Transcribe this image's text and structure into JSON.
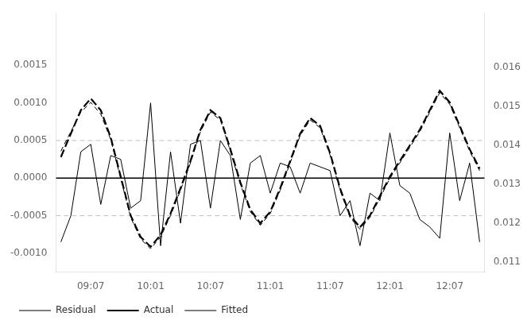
{
  "chart_data": {
    "type": "line",
    "categories": [
      null,
      null,
      null,
      "09:07",
      null,
      null,
      null,
      null,
      null,
      "10:01",
      null,
      null,
      null,
      null,
      null,
      "10:07",
      null,
      null,
      null,
      null,
      null,
      "11:01",
      null,
      null,
      null,
      null,
      null,
      "11:07",
      null,
      null,
      null,
      null,
      null,
      "12:01",
      null,
      null,
      null,
      null,
      null,
      "12:07",
      null,
      null,
      null
    ],
    "series": [
      {
        "name": "Residual",
        "color": "#000000",
        "line_style": "solid",
        "values": [
          -0.00085,
          -0.0005,
          0.00035,
          0.00045,
          -0.00035,
          0.0003,
          0.00025,
          -0.0004,
          -0.0003,
          0.001,
          -0.0009,
          0.00035,
          -0.0006,
          0.00045,
          0.0005,
          -0.0004,
          0.0005,
          0.0003,
          -0.00055,
          0.0002,
          0.0003,
          -0.0002,
          0.0002,
          0.00015,
          -0.0002,
          0.0002,
          0.00015,
          0.0001,
          -0.0005,
          -0.0003,
          -0.0009,
          -0.0002,
          -0.0003,
          0.0006,
          -0.0001,
          -0.0002,
          -0.00055,
          -0.00065,
          -0.0008,
          0.0006,
          -0.0003,
          0.0002,
          -0.00085
        ]
      },
      {
        "name": "Actual",
        "color": "#000000",
        "line_style": "dashed",
        "axis": "y2",
        "values": [
          0.0137,
          0.0143,
          0.0149,
          0.0152,
          0.0149,
          0.0142,
          0.0132,
          0.0122,
          0.01165,
          0.0114,
          0.0117,
          0.01225,
          0.0129,
          0.0136,
          0.0144,
          0.0149,
          0.0147,
          0.0139,
          0.01305,
          0.01235,
          0.012,
          0.0123,
          0.0129,
          0.0136,
          0.0143,
          0.0147,
          0.0145,
          0.0138,
          0.0129,
          0.0122,
          0.0119,
          0.0122,
          0.0127,
          0.0132,
          0.0136,
          0.014,
          0.0144,
          0.0149,
          0.0154,
          0.0151,
          0.0145,
          0.0139,
          0.0134
        ]
      },
      {
        "name": "Fitted",
        "color": "#000000",
        "line_style": "dashed",
        "axis": "y2",
        "values": [
          0.01385,
          0.01435,
          0.01485,
          0.0151,
          0.0148,
          0.01415,
          0.01315,
          0.01215,
          0.0116,
          0.01135,
          0.01165,
          0.0122,
          0.01285,
          0.01355,
          0.01435,
          0.01485,
          0.01465,
          0.01385,
          0.013,
          0.0123,
          0.01195,
          0.01225,
          0.01285,
          0.01355,
          0.01425,
          0.01465,
          0.01445,
          0.01375,
          0.01285,
          0.01215,
          0.01185,
          0.01215,
          0.01265,
          0.01315,
          0.01355,
          0.01395,
          0.01435,
          0.01485,
          0.01535,
          0.01505,
          0.01445,
          0.01385,
          0.01335
        ]
      }
    ],
    "ylim": [
      -0.00125,
      0.0022
    ],
    "yticks": [
      {
        "value": -0.001,
        "label": "-0.0010"
      },
      {
        "value": -0.0005,
        "label": "-0.0005"
      },
      {
        "value": 0.0,
        "label": "0.0000"
      },
      {
        "value": 0.0005,
        "label": "0.0005"
      },
      {
        "value": 0.001,
        "label": "0.0010"
      },
      {
        "value": 0.0015,
        "label": "0.0015"
      }
    ],
    "y2lim": [
      0.01075,
      0.0174
    ],
    "y2ticks": [
      0.011,
      0.012,
      0.013,
      0.014,
      0.015,
      0.016
    ],
    "hlines": [
      {
        "value": 0.0005,
        "color": "#b0b0b0",
        "line_style": "dashed"
      },
      {
        "value": -0.0005,
        "color": "#b0b0b0",
        "line_style": "dashed"
      },
      {
        "value": 0.0,
        "color": "#000000",
        "line_style": "solid"
      }
    ],
    "grid": false,
    "legend": "lower left"
  }
}
